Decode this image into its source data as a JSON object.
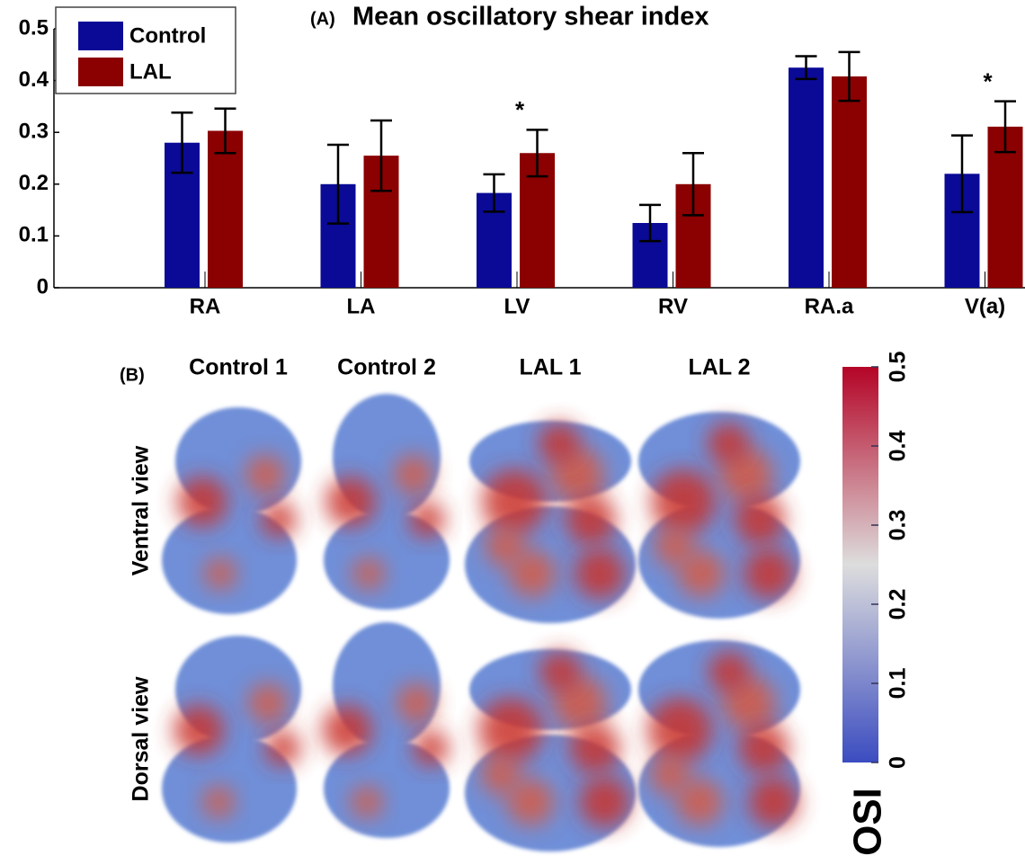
{
  "chart_data": {
    "type": "bar",
    "panel_label": "(A)",
    "title": "Mean oscillatory shear index",
    "categories": [
      "RA",
      "LA",
      "LV",
      "RV",
      "RA.a",
      "V(a)"
    ],
    "series": [
      {
        "name": "Control",
        "color": "#0a0a96",
        "values": [
          0.28,
          0.2,
          0.183,
          0.125,
          0.425,
          0.22
        ],
        "errors": [
          0.058,
          0.076,
          0.036,
          0.035,
          0.022,
          0.074
        ]
      },
      {
        "name": "LAL",
        "color": "#8b0000",
        "values": [
          0.303,
          0.255,
          0.26,
          0.2,
          0.408,
          0.311
        ],
        "errors": [
          0.043,
          0.068,
          0.045,
          0.06,
          0.047,
          0.049
        ]
      }
    ],
    "annotations": [
      {
        "text": "*",
        "category": "LV"
      },
      {
        "text": "*",
        "category": "V(a)"
      }
    ],
    "ylim": [
      0,
      0.5
    ],
    "yticks": [
      0,
      0.1,
      0.2,
      0.3,
      0.4,
      0.5
    ],
    "grid": false,
    "legend": "upper left"
  },
  "panel_b": {
    "panel_label": "(B)",
    "columns": [
      "Control 1",
      "Control 2",
      "LAL 1",
      "LAL 2"
    ],
    "rows": [
      "Ventral view",
      "Dorsal view"
    ],
    "colorbar": {
      "label": "OSI",
      "lim": [
        0,
        0.5
      ],
      "ticks": [
        0,
        0.1,
        0.2,
        0.3,
        0.4,
        0.5
      ],
      "colors": [
        "#3b4cc0",
        "#dddddd",
        "#b40426"
      ]
    }
  }
}
